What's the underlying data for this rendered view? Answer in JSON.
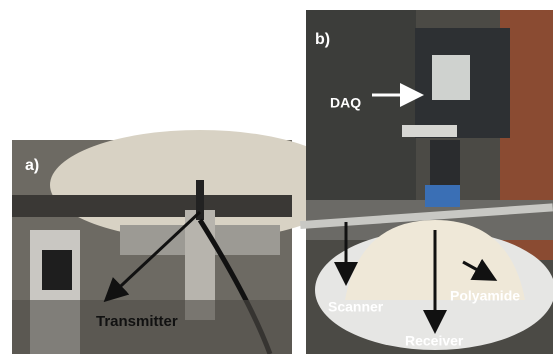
{
  "panels": [
    {
      "label": "a)",
      "annotations": [
        "Transmitter"
      ]
    },
    {
      "label": "b)",
      "annotations": [
        "DAQ",
        "Scanner",
        "Receiver",
        "Polyamide"
      ]
    }
  ]
}
